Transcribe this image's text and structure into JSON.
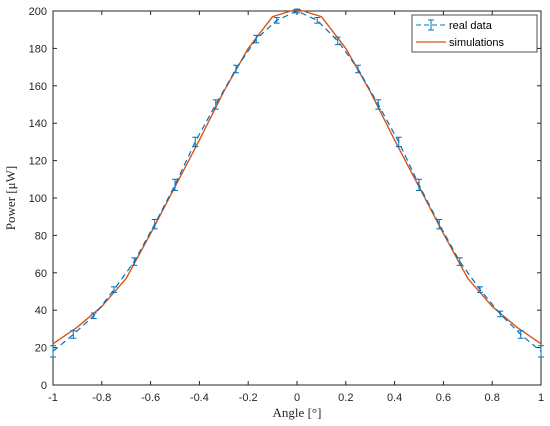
{
  "chart_data": {
    "type": "line",
    "xlabel": "Angle [°]",
    "ylabel": "Power [μW]",
    "xlim": [
      -1,
      1
    ],
    "ylim": [
      0,
      200
    ],
    "xticks": [
      -1,
      -0.8,
      -0.6,
      -0.4,
      -0.2,
      0,
      0.2,
      0.4,
      0.6,
      0.8,
      1
    ],
    "xtick_labels": [
      "-1",
      "-0.8",
      "-0.6",
      "-0.4",
      "-0.2",
      "0",
      "0.2",
      "0.4",
      "0.6",
      "0.8",
      "1"
    ],
    "yticks": [
      0,
      20,
      40,
      60,
      80,
      100,
      120,
      140,
      160,
      180,
      200
    ],
    "ytick_labels": [
      "0",
      "20",
      "40",
      "60",
      "80",
      "100",
      "120",
      "140",
      "160",
      "180",
      "200"
    ],
    "grid": false,
    "legend_position": "top-right",
    "series": [
      {
        "name": "real data",
        "style": "dashed line with error bars",
        "color": "#0072BD",
        "x": [
          -1,
          -0.917,
          -0.833,
          -0.75,
          -0.667,
          -0.583,
          -0.5,
          -0.417,
          -0.333,
          -0.25,
          -0.167,
          -0.083,
          0,
          0.083,
          0.167,
          0.25,
          0.333,
          0.417,
          0.5,
          0.583,
          0.667,
          0.75,
          0.833,
          0.917,
          1
        ],
        "y": [
          18,
          27,
          37,
          51,
          66,
          86,
          107,
          130,
          150,
          169,
          185,
          195,
          200,
          195,
          184,
          169,
          150,
          130,
          107,
          86,
          66,
          51,
          38,
          27,
          18
        ],
        "error": [
          3,
          2,
          1.5,
          1.5,
          2,
          2.5,
          3,
          2.5,
          2.5,
          2,
          2,
          1.5,
          1,
          1.5,
          2,
          2,
          2.5,
          2.5,
          3,
          2.5,
          2,
          1.5,
          1.5,
          2,
          3
        ]
      },
      {
        "name": "simulations",
        "style": "solid line",
        "color": "#D95319",
        "x": [
          -1,
          -0.9,
          -0.8,
          -0.7,
          -0.6,
          -0.5,
          -0.4,
          -0.3,
          -0.2,
          -0.1,
          0,
          0.1,
          0.2,
          0.3,
          0.4,
          0.5,
          0.6,
          0.7,
          0.8,
          0.9,
          1
        ],
        "y": [
          22,
          31,
          42,
          57,
          81,
          106,
          131,
          157,
          180,
          197,
          201,
          197,
          180,
          157,
          131,
          106,
          81,
          57,
          42,
          31,
          22
        ]
      }
    ]
  }
}
